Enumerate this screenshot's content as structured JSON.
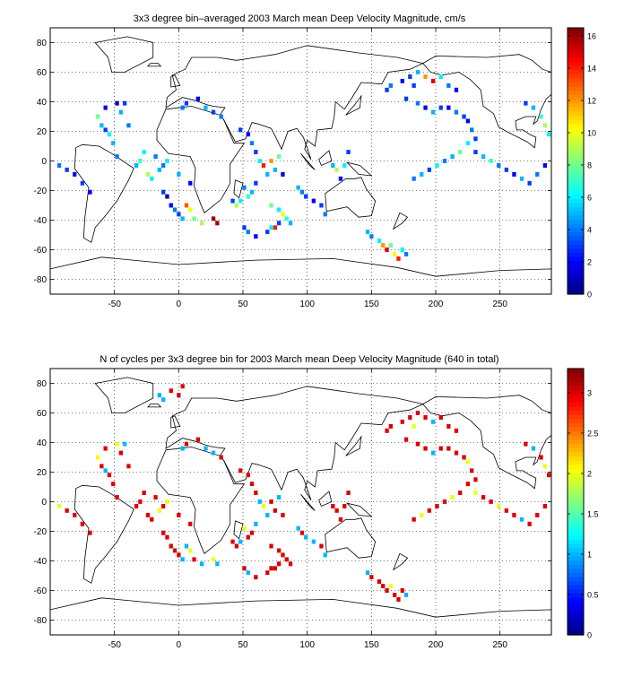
{
  "figure": {
    "panels": [
      {
        "id": "velocity",
        "title": "3x3 degree bin–averaged 2003 March mean Deep Velocity Magnitude, cm/s",
        "colorbar": {
          "min": 0,
          "max": 16.5,
          "ticks": [
            0,
            2,
            4,
            6,
            8,
            10,
            12,
            14,
            16
          ]
        },
        "x_ticks": [
          -50,
          0,
          50,
          100,
          150,
          200,
          250
        ],
        "y_ticks": [
          80,
          60,
          40,
          20,
          0,
          -20,
          -40,
          -60,
          -80
        ]
      },
      {
        "id": "cycles",
        "title": "N of cycles per 3x3 degree bin for 2003 March mean Deep Velocity Magnitude (640 in total)",
        "colorbar": {
          "min": 0,
          "max": 3.3,
          "ticks": [
            0,
            0.5,
            1,
            1.5,
            2,
            2.5,
            3
          ]
        },
        "x_ticks": [
          -50,
          0,
          50,
          100,
          150,
          200,
          250
        ],
        "y_ticks": [
          80,
          60,
          40,
          20,
          0,
          -20,
          -40,
          -60,
          -80
        ]
      }
    ]
  },
  "chart_data": [
    {
      "type": "heatmap",
      "title": "3x3 degree bin–averaged 2003 March mean Deep Velocity Magnitude, cm/s",
      "xlim": [
        -100,
        290
      ],
      "ylim": [
        -90,
        90
      ],
      "bin_size_deg": 3,
      "colormap": "jet",
      "cbar_range": [
        0,
        16.5
      ],
      "grid": true,
      "cells": [
        [
          -93,
          -3,
          4
        ],
        [
          -87,
          -6,
          3
        ],
        [
          -81,
          -9,
          2
        ],
        [
          -75,
          -15,
          3
        ],
        [
          -69,
          -21,
          2
        ],
        [
          -63,
          30,
          8
        ],
        [
          -60,
          24,
          5
        ],
        [
          -57,
          21,
          3
        ],
        [
          -54,
          18,
          6
        ],
        [
          -51,
          12,
          5
        ],
        [
          -48,
          3,
          4
        ],
        [
          -57,
          36,
          2
        ],
        [
          -48,
          39,
          1
        ],
        [
          -45,
          33,
          5
        ],
        [
          -42,
          39,
          3
        ],
        [
          -39,
          24,
          4
        ],
        [
          -33,
          -3,
          5
        ],
        [
          -30,
          0,
          7
        ],
        [
          -27,
          6,
          6
        ],
        [
          -24,
          -9,
          9
        ],
        [
          -21,
          -12,
          6
        ],
        [
          -18,
          3,
          4
        ],
        [
          -15,
          -6,
          5
        ],
        [
          -12,
          -21,
          3
        ],
        [
          -9,
          -24,
          1
        ],
        [
          -6,
          -30,
          2
        ],
        [
          -3,
          -33,
          4
        ],
        [
          0,
          -36,
          3
        ],
        [
          3,
          -39,
          5
        ],
        [
          6,
          -30,
          13
        ],
        [
          9,
          -33,
          10
        ],
        [
          12,
          -39,
          8
        ],
        [
          18,
          -42,
          9
        ],
        [
          27,
          -39,
          16
        ],
        [
          30,
          -42,
          16
        ],
        [
          -12,
          -3,
          4
        ],
        [
          -9,
          0,
          6
        ],
        [
          0,
          -9,
          5
        ],
        [
          9,
          -15,
          2
        ],
        [
          3,
          36,
          4
        ],
        [
          6,
          39,
          3
        ],
        [
          15,
          42,
          2
        ],
        [
          21,
          36,
          5
        ],
        [
          27,
          33,
          3
        ],
        [
          33,
          30,
          4
        ],
        [
          48,
          21,
          3
        ],
        [
          54,
          18,
          2
        ],
        [
          57,
          12,
          4
        ],
        [
          60,
          6,
          3
        ],
        [
          63,
          0,
          6
        ],
        [
          66,
          -3,
          14
        ],
        [
          72,
          0,
          12
        ],
        [
          75,
          -6,
          5
        ],
        [
          78,
          3,
          8
        ],
        [
          81,
          -9,
          2
        ],
        [
          69,
          -9,
          5
        ],
        [
          60,
          -15,
          3
        ],
        [
          57,
          -21,
          5
        ],
        [
          54,
          -24,
          7
        ],
        [
          51,
          -18,
          4
        ],
        [
          48,
          -27,
          6
        ],
        [
          45,
          -30,
          9
        ],
        [
          42,
          -27,
          3
        ],
        [
          72,
          -30,
          8
        ],
        [
          78,
          -33,
          6
        ],
        [
          81,
          -36,
          10
        ],
        [
          84,
          -39,
          7
        ],
        [
          87,
          -42,
          5
        ],
        [
          78,
          -42,
          3
        ],
        [
          75,
          -45,
          14
        ],
        [
          72,
          -45,
          6
        ],
        [
          69,
          -48,
          3
        ],
        [
          60,
          -51,
          2
        ],
        [
          54,
          -48,
          4
        ],
        [
          51,
          -45,
          3
        ],
        [
          93,
          -18,
          5
        ],
        [
          96,
          -21,
          4
        ],
        [
          99,
          -24,
          3
        ],
        [
          105,
          -27,
          2
        ],
        [
          111,
          -30,
          3
        ],
        [
          114,
          -36,
          4
        ],
        [
          120,
          -3,
          5
        ],
        [
          123,
          -6,
          9
        ],
        [
          126,
          -12,
          2
        ],
        [
          129,
          -3,
          6
        ],
        [
          132,
          6,
          3
        ],
        [
          147,
          -48,
          5
        ],
        [
          150,
          -51,
          4
        ],
        [
          156,
          -54,
          6
        ],
        [
          159,
          -57,
          12
        ],
        [
          162,
          -60,
          15
        ],
        [
          165,
          -57,
          8
        ],
        [
          168,
          -63,
          10
        ],
        [
          171,
          -66,
          14
        ],
        [
          174,
          -60,
          6
        ],
        [
          177,
          -63,
          4
        ],
        [
          162,
          48,
          3
        ],
        [
          165,
          51,
          4
        ],
        [
          174,
          54,
          2
        ],
        [
          180,
          57,
          3
        ],
        [
          186,
          60,
          5
        ],
        [
          192,
          57,
          12
        ],
        [
          198,
          54,
          15
        ],
        [
          204,
          57,
          6
        ],
        [
          210,
          51,
          4
        ],
        [
          216,
          48,
          2
        ],
        [
          183,
          51,
          3
        ],
        [
          177,
          42,
          3
        ],
        [
          186,
          39,
          4
        ],
        [
          192,
          36,
          2
        ],
        [
          198,
          33,
          5
        ],
        [
          204,
          36,
          3
        ],
        [
          210,
          36,
          2
        ],
        [
          216,
          33,
          4
        ],
        [
          222,
          30,
          3
        ],
        [
          225,
          27,
          2
        ],
        [
          228,
          21,
          4
        ],
        [
          231,
          15,
          3
        ],
        [
          225,
          12,
          6
        ],
        [
          219,
          6,
          8
        ],
        [
          213,
          3,
          5
        ],
        [
          207,
          0,
          4
        ],
        [
          201,
          -3,
          6
        ],
        [
          195,
          -6,
          3
        ],
        [
          189,
          -9,
          5
        ],
        [
          183,
          -12,
          4
        ],
        [
          231,
          6,
          3
        ],
        [
          237,
          3,
          5
        ],
        [
          243,
          0,
          7
        ],
        [
          249,
          -3,
          4
        ],
        [
          255,
          -6,
          3
        ],
        [
          261,
          -9,
          2
        ],
        [
          267,
          -12,
          5
        ],
        [
          273,
          -15,
          3
        ],
        [
          279,
          -9,
          4
        ],
        [
          285,
          -3,
          2
        ],
        [
          288,
          18,
          6
        ],
        [
          285,
          24,
          9
        ],
        [
          282,
          30,
          7
        ],
        [
          276,
          36,
          5
        ],
        [
          270,
          39,
          3
        ]
      ]
    },
    {
      "type": "heatmap",
      "title": "N of cycles per 3x3 degree bin for 2003 March mean Deep Velocity Magnitude (640 in total)",
      "xlim": [
        -100,
        290
      ],
      "ylim": [
        -90,
        90
      ],
      "bin_size_deg": 3,
      "colormap": "jet",
      "cbar_range": [
        0,
        3.3
      ],
      "grid": true,
      "cells": [
        [
          -93,
          -3,
          2
        ],
        [
          -87,
          -6,
          3
        ],
        [
          -81,
          -9,
          3
        ],
        [
          -75,
          -15,
          3
        ],
        [
          -69,
          -21,
          3
        ],
        [
          -63,
          30,
          2
        ],
        [
          -60,
          24,
          3
        ],
        [
          -57,
          21,
          1
        ],
        [
          -54,
          18,
          3
        ],
        [
          -51,
          12,
          3
        ],
        [
          -48,
          3,
          3
        ],
        [
          -57,
          36,
          3
        ],
        [
          -48,
          39,
          2
        ],
        [
          -45,
          33,
          3
        ],
        [
          -42,
          39,
          1
        ],
        [
          -39,
          24,
          3
        ],
        [
          -33,
          -3,
          3
        ],
        [
          -30,
          0,
          3
        ],
        [
          -27,
          6,
          3
        ],
        [
          -24,
          -9,
          3
        ],
        [
          -21,
          -12,
          3
        ],
        [
          -18,
          3,
          3
        ],
        [
          -15,
          -6,
          2
        ],
        [
          -12,
          -21,
          3
        ],
        [
          -9,
          -24,
          3
        ],
        [
          -6,
          -30,
          3
        ],
        [
          -3,
          -33,
          3
        ],
        [
          0,
          -36,
          3
        ],
        [
          3,
          -39,
          1
        ],
        [
          6,
          -30,
          1
        ],
        [
          9,
          -33,
          2
        ],
        [
          12,
          -39,
          3
        ],
        [
          18,
          -42,
          1
        ],
        [
          27,
          -39,
          2
        ],
        [
          30,
          -42,
          1
        ],
        [
          -12,
          -3,
          3
        ],
        [
          -9,
          0,
          2
        ],
        [
          0,
          -9,
          3
        ],
        [
          9,
          -15,
          3
        ],
        [
          -15,
          72,
          1
        ],
        [
          -12,
          69,
          1
        ],
        [
          -6,
          75,
          3
        ],
        [
          0,
          72,
          3
        ],
        [
          3,
          78,
          3
        ],
        [
          3,
          36,
          1
        ],
        [
          6,
          39,
          3
        ],
        [
          15,
          42,
          3
        ],
        [
          21,
          36,
          1
        ],
        [
          27,
          33,
          1
        ],
        [
          33,
          30,
          3
        ],
        [
          48,
          21,
          3
        ],
        [
          54,
          18,
          3
        ],
        [
          57,
          12,
          3
        ],
        [
          60,
          6,
          3
        ],
        [
          63,
          0,
          1
        ],
        [
          66,
          -3,
          2
        ],
        [
          72,
          0,
          3
        ],
        [
          75,
          -6,
          3
        ],
        [
          78,
          3,
          1
        ],
        [
          81,
          -9,
          3
        ],
        [
          69,
          -9,
          1
        ],
        [
          60,
          -15,
          1
        ],
        [
          57,
          -21,
          3
        ],
        [
          54,
          -24,
          3
        ],
        [
          51,
          -18,
          2
        ],
        [
          48,
          -27,
          1
        ],
        [
          45,
          -30,
          3
        ],
        [
          42,
          -27,
          3
        ],
        [
          72,
          -30,
          3
        ],
        [
          78,
          -33,
          3
        ],
        [
          81,
          -36,
          3
        ],
        [
          84,
          -39,
          3
        ],
        [
          87,
          -42,
          3
        ],
        [
          78,
          -42,
          3
        ],
        [
          75,
          -45,
          3
        ],
        [
          72,
          -45,
          3
        ],
        [
          69,
          -48,
          3
        ],
        [
          60,
          -51,
          3
        ],
        [
          54,
          -48,
          1
        ],
        [
          51,
          -45,
          3
        ],
        [
          93,
          -18,
          1
        ],
        [
          96,
          -21,
          3
        ],
        [
          99,
          -24,
          1
        ],
        [
          105,
          -27,
          1
        ],
        [
          111,
          -30,
          3
        ],
        [
          114,
          -36,
          1
        ],
        [
          120,
          -3,
          3
        ],
        [
          123,
          -6,
          3
        ],
        [
          126,
          -12,
          3
        ],
        [
          129,
          -3,
          3
        ],
        [
          132,
          6,
          3
        ],
        [
          147,
          -48,
          1
        ],
        [
          150,
          -51,
          3
        ],
        [
          156,
          -54,
          3
        ],
        [
          159,
          -57,
          3
        ],
        [
          162,
          -60,
          3
        ],
        [
          165,
          -57,
          2
        ],
        [
          168,
          -63,
          3
        ],
        [
          171,
          -66,
          3
        ],
        [
          174,
          -60,
          3
        ],
        [
          177,
          -63,
          1
        ],
        [
          162,
          48,
          3
        ],
        [
          165,
          51,
          3
        ],
        [
          174,
          54,
          3
        ],
        [
          180,
          57,
          3
        ],
        [
          186,
          60,
          3
        ],
        [
          192,
          57,
          3
        ],
        [
          198,
          54,
          1
        ],
        [
          204,
          57,
          3
        ],
        [
          210,
          51,
          3
        ],
        [
          216,
          48,
          3
        ],
        [
          183,
          51,
          2
        ],
        [
          177,
          42,
          3
        ],
        [
          186,
          39,
          3
        ],
        [
          192,
          36,
          3
        ],
        [
          198,
          33,
          1
        ],
        [
          204,
          36,
          3
        ],
        [
          210,
          36,
          3
        ],
        [
          216,
          33,
          3
        ],
        [
          222,
          30,
          3
        ],
        [
          225,
          27,
          2
        ],
        [
          228,
          21,
          3
        ],
        [
          231,
          15,
          3
        ],
        [
          225,
          12,
          3
        ],
        [
          219,
          6,
          3
        ],
        [
          213,
          3,
          2
        ],
        [
          207,
          0,
          3
        ],
        [
          201,
          -3,
          3
        ],
        [
          195,
          -6,
          3
        ],
        [
          189,
          -9,
          2
        ],
        [
          183,
          -12,
          3
        ],
        [
          231,
          6,
          2
        ],
        [
          237,
          3,
          3
        ],
        [
          243,
          0,
          3
        ],
        [
          249,
          -3,
          2
        ],
        [
          255,
          -6,
          3
        ],
        [
          261,
          -9,
          3
        ],
        [
          267,
          -12,
          1
        ],
        [
          273,
          -15,
          3
        ],
        [
          279,
          -9,
          3
        ],
        [
          285,
          -3,
          3
        ],
        [
          288,
          18,
          3
        ],
        [
          285,
          24,
          2
        ],
        [
          282,
          30,
          3
        ],
        [
          276,
          36,
          1
        ],
        [
          270,
          39,
          3
        ]
      ]
    }
  ]
}
